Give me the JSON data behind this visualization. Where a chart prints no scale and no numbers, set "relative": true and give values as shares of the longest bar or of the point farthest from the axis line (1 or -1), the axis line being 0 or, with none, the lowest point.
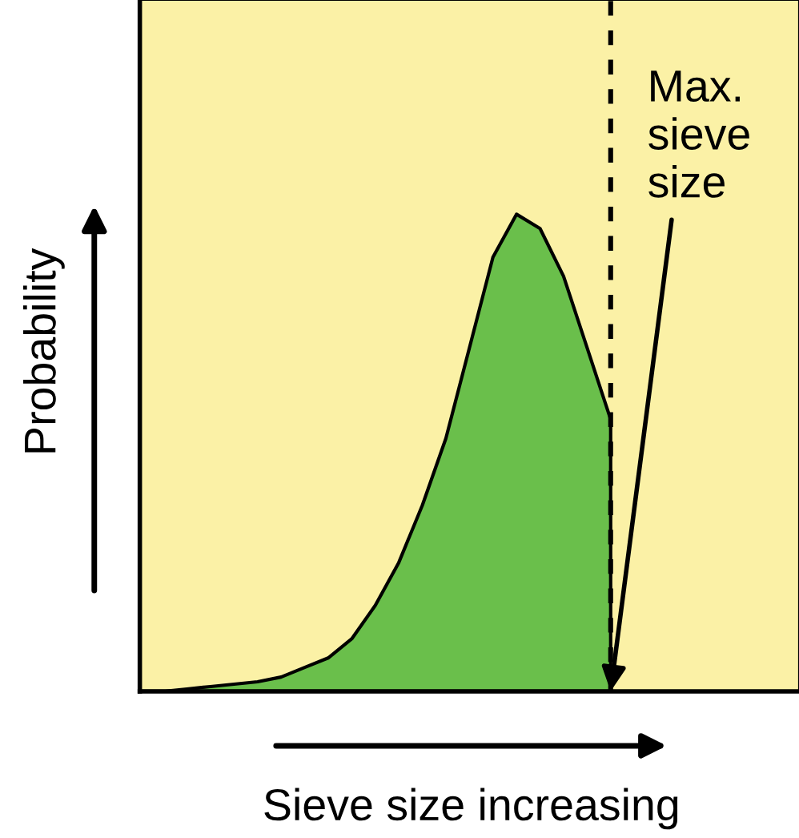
{
  "chart_data": {
    "type": "area",
    "relative": true,
    "xlabel": "Sieve size increasing",
    "ylabel": "Probability",
    "categories": [
      null,
      null,
      null,
      null,
      null,
      null,
      null,
      null,
      null,
      null,
      null,
      null,
      null,
      null,
      null,
      null,
      null,
      null,
      null,
      null,
      null,
      null,
      null,
      null,
      null,
      null,
      null,
      null,
      null
    ],
    "series": [
      {
        "color": "#6abf4b",
        "values": [
          0,
          0,
          0.005,
          0.01,
          0.015,
          0.02,
          0.03,
          0.05,
          0.07,
          0.11,
          0.18,
          0.27,
          0.39,
          0.53,
          0.72,
          0.91,
          1.0,
          0.97,
          0.87,
          0.72,
          0.57,
          null,
          null,
          null,
          null,
          null,
          null,
          null,
          null
        ]
      }
    ],
    "annotations": [
      "Max.\nsieve\nsize"
    ],
    "grid": false
  }
}
